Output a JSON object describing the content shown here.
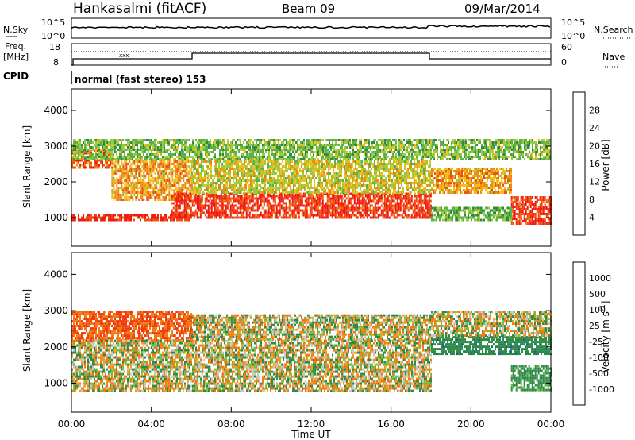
{
  "header": {
    "station": "Hankasalmi (fitACF)",
    "beam": "Beam 09",
    "date": "09/Mar/2014"
  },
  "strip_labels": {
    "nsky": "N.Sky",
    "nsky_tick_top": "10^5",
    "nsky_tick_bottom": "10^0",
    "nsearch": "N.Search",
    "nsearch_tick_top": "10^5",
    "nsearch_tick_bottom": "10^0",
    "freq": "Freq.",
    "freq_unit": "[MHz]",
    "freq_tick_top": "18",
    "freq_tick_bottom": "8",
    "nave": "Nave",
    "nave_tick_top": "60",
    "nave_tick_bottom": "0",
    "cpid": "CPID",
    "cpid_value": "normal (fast stereo) 153"
  },
  "colors": {
    "power": [
      "#1a2ef5",
      "#1f4fa8",
      "#2f8a4a",
      "#5ab04a",
      "#9acd3c",
      "#f0c020",
      "#f08a10",
      "#f05010",
      "#f01a10"
    ],
    "velocity": [
      "#1a2ee0",
      "#1f5fa0",
      "#2f8a4a",
      "#6ec040",
      "#c8c8c0",
      "#f0a020",
      "#f07a10",
      "#f03a10",
      "#f01a10"
    ]
  },
  "chart_data": [
    {
      "type": "heatmap",
      "name": "power-panel",
      "ylabel": "Slant Range [km]",
      "x_range": [
        "00:00",
        "24:00"
      ],
      "ylim": [
        200,
        4600
      ],
      "y_ticks": [
        1000,
        2000,
        3000,
        4000
      ],
      "colorbar": {
        "label": "Power [dB]",
        "ticks": [
          4,
          8,
          12,
          16,
          20,
          24,
          28
        ],
        "range": [
          0,
          32
        ]
      },
      "bands": [
        {
          "t0": 0.0,
          "t1": 6.0,
          "r0": 900,
          "r1": 1100,
          "level": 30
        },
        {
          "t0": 0.0,
          "t1": 2.0,
          "r0": 2400,
          "r1": 2900,
          "level": 26
        },
        {
          "t0": 2.0,
          "t1": 6.0,
          "r0": 1500,
          "r1": 2600,
          "level": 22
        },
        {
          "t0": 5.0,
          "t1": 18.0,
          "r0": 1000,
          "r1": 1700,
          "level": 29
        },
        {
          "t0": 6.0,
          "t1": 18.0,
          "r0": 1700,
          "r1": 2600,
          "level": 18
        },
        {
          "t0": 0.0,
          "t1": 24.0,
          "r0": 2600,
          "r1": 3200,
          "level": 14
        },
        {
          "t0": 18.0,
          "t1": 22.0,
          "r0": 1700,
          "r1": 2400,
          "level": 22
        },
        {
          "t0": 22.0,
          "t1": 24.0,
          "r0": 800,
          "r1": 1600,
          "level": 29
        },
        {
          "t0": 18.0,
          "t1": 22.0,
          "r0": 900,
          "r1": 1300,
          "level": 13
        }
      ]
    },
    {
      "type": "heatmap",
      "name": "velocity-panel",
      "ylabel": "Slant Range [km]",
      "xlabel": "Time UT",
      "x_ticks": [
        "00:00",
        "04:00",
        "08:00",
        "12:00",
        "16:00",
        "20:00",
        "00:00"
      ],
      "ylim": [
        200,
        4600
      ],
      "y_ticks": [
        1000,
        2000,
        3000,
        4000
      ],
      "colorbar": {
        "label": "Velocity [m s^-1]",
        "ticks": [
          1000,
          500,
          100,
          25,
          -25,
          -100,
          -500,
          -1000
        ]
      },
      "bands": [
        {
          "t0": 0.0,
          "t1": 6.0,
          "r0": 2200,
          "r1": 3000,
          "level": "-300"
        },
        {
          "t0": 0.0,
          "t1": 18.0,
          "r0": 800,
          "r1": 2200,
          "level": "0"
        },
        {
          "t0": 6.0,
          "t1": 18.0,
          "r0": 2200,
          "r1": 2900,
          "level": "0"
        },
        {
          "t0": 18.0,
          "t1": 24.0,
          "r0": 1800,
          "r1": 2300,
          "level": "200"
        },
        {
          "t0": 18.0,
          "t1": 24.0,
          "r0": 2300,
          "r1": 3000,
          "level": "0"
        },
        {
          "t0": 22.0,
          "t1": 24.0,
          "r0": 800,
          "r1": 1500,
          "level": "150"
        }
      ]
    }
  ]
}
